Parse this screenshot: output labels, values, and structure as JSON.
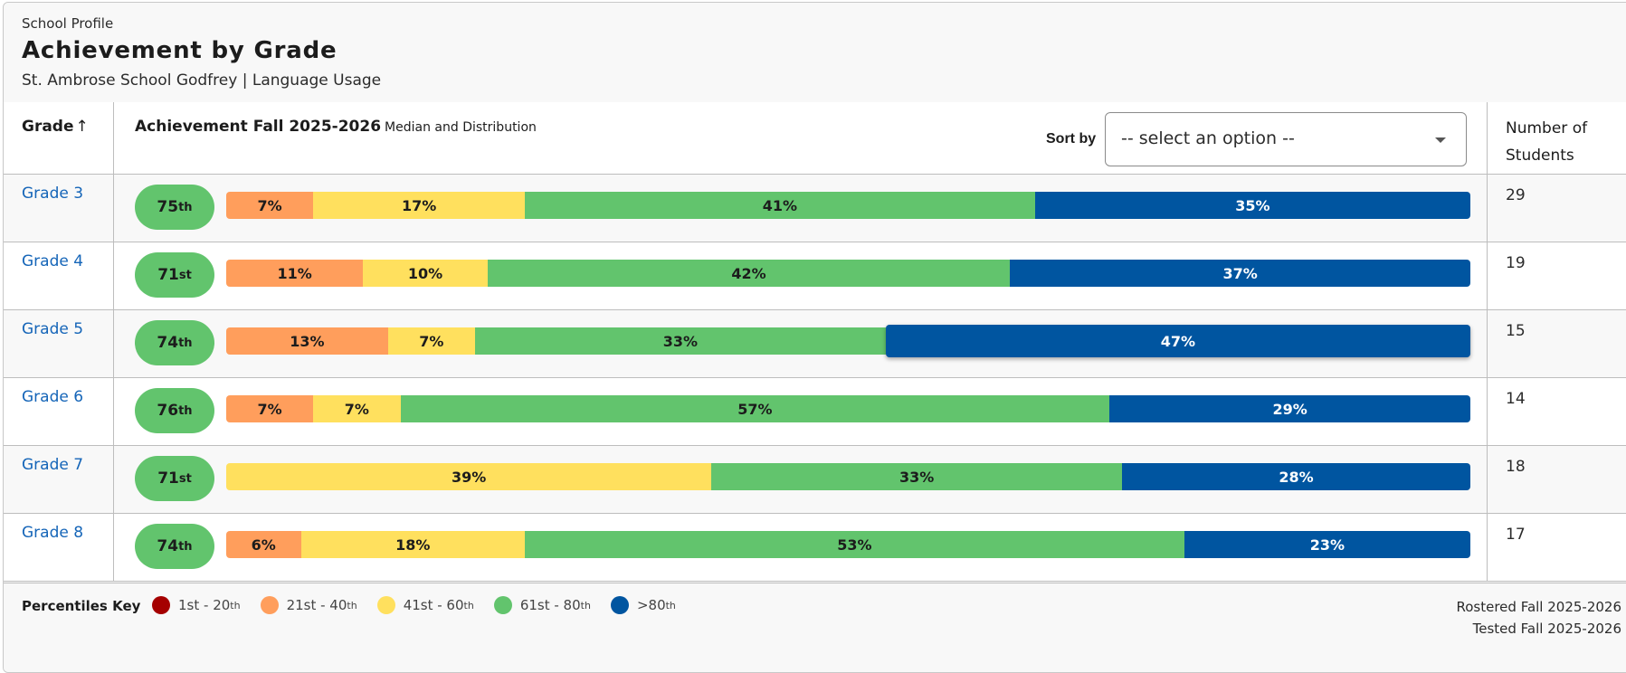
{
  "header": {
    "eyebrow": "School Profile",
    "title": "Achievement by Grade",
    "subtitle": "St. Ambrose School Godfrey | Language Usage"
  },
  "table": {
    "col_grade": "Grade",
    "col_grade_sort_icon": "arrow-up-icon",
    "col_achievement": "Achievement Fall 2025-2026",
    "col_achievement_sub": "Median and Distribution",
    "sort_label": "Sort by",
    "sort_select": {
      "value": "-- select an option --"
    },
    "col_students_line1": "Number of",
    "col_students_line2": "Students"
  },
  "colors": {
    "1st-20th": "#a50000",
    "21st-40th": "#ff9e5c",
    "41st-60th": "#ffe05e",
    "61st-80th": "#62c46d",
    ">80th": "#0055a0",
    "link": "#1565b8"
  },
  "chart_data": {
    "type": "bar",
    "stacked": true,
    "orientation": "horizontal",
    "title": "Achievement Fall 2025-2026 Median and Distribution",
    "categories": [
      "Grade 3",
      "Grade 4",
      "Grade 5",
      "Grade 6",
      "Grade 7",
      "Grade 8"
    ],
    "medians": [
      {
        "value": "75",
        "suffix": "th"
      },
      {
        "value": "71",
        "suffix": "st"
      },
      {
        "value": "74",
        "suffix": "th"
      },
      {
        "value": "76",
        "suffix": "th"
      },
      {
        "value": "71",
        "suffix": "st"
      },
      {
        "value": "74",
        "suffix": "th"
      }
    ],
    "series": [
      {
        "name": "1st - 20th",
        "key": "1st-20th",
        "values": [
          0,
          0,
          0,
          0,
          0,
          0
        ]
      },
      {
        "name": "21st - 40th",
        "key": "21st-40th",
        "values": [
          7,
          11,
          13,
          7,
          0,
          6
        ]
      },
      {
        "name": "41st - 60th",
        "key": "41st-60th",
        "values": [
          17,
          10,
          7,
          7,
          39,
          18
        ]
      },
      {
        "name": "61st - 80th",
        "key": "61st-80th",
        "values": [
          41,
          42,
          33,
          57,
          33,
          53
        ]
      },
      {
        "name": ">80th",
        "key": ">80th",
        "values": [
          35,
          37,
          47,
          29,
          28,
          23
        ]
      }
    ],
    "students": [
      29,
      19,
      15,
      14,
      18,
      17
    ],
    "hovered": {
      "category": "Grade 5",
      "series": ">80th"
    },
    "unit": "%"
  },
  "footer": {
    "key_label": "Percentiles Key",
    "key_items": [
      {
        "key": "1st-20th",
        "text": "1st - 20",
        "sup": "th"
      },
      {
        "key": "21st-40th",
        "text": "21st - 40",
        "sup": "th"
      },
      {
        "key": "41st-60th",
        "text": "41st - 60",
        "sup": "th"
      },
      {
        "key": "61st-80th",
        "text": "61st - 80",
        "sup": "th"
      },
      {
        "key": ">80th",
        "text": ">80",
        "sup": "th"
      }
    ],
    "rostered": "Rostered Fall 2025-2026",
    "tested": "Tested Fall 2025-2026"
  }
}
